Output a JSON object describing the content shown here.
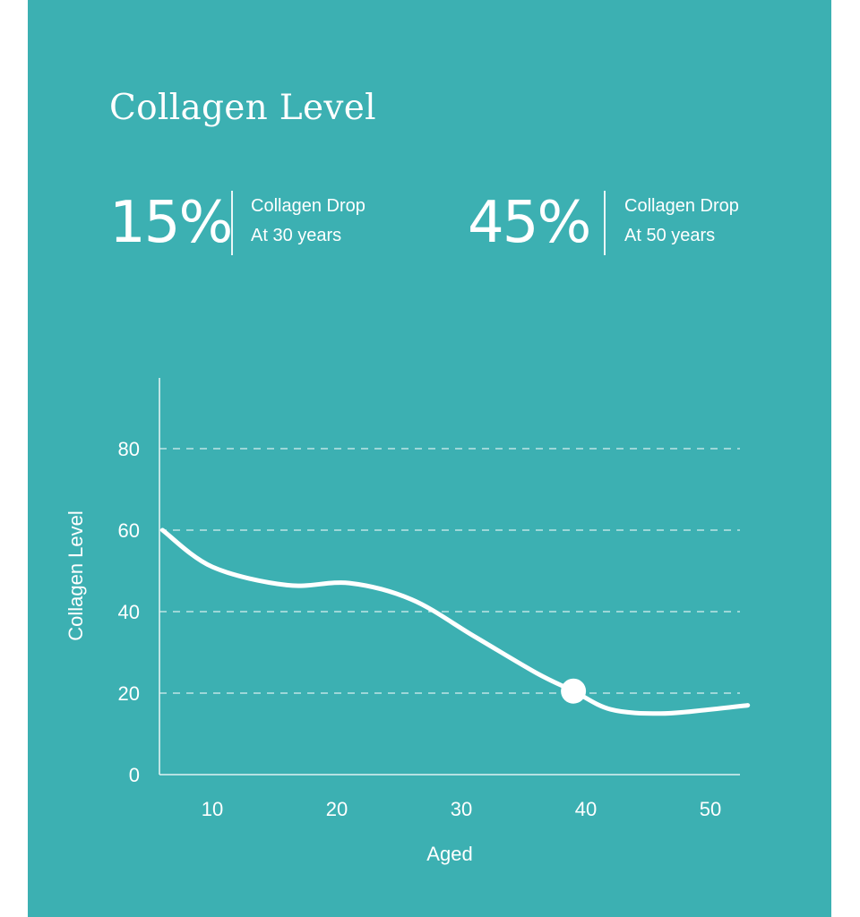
{
  "header": {
    "title": "Collagen Level"
  },
  "stats": [
    {
      "value": "15%",
      "line1": "Collagen Drop",
      "line2": "At 30 years"
    },
    {
      "value": "45%",
      "line1": "Collagen Drop",
      "line2": "At 50 years"
    }
  ],
  "colors": {
    "background": "#3cb0b2",
    "foreground": "#ffffff"
  },
  "chart_data": {
    "type": "line",
    "xlabel": "Aged",
    "ylabel": "Collagen Level",
    "xlim": [
      4,
      53
    ],
    "ylim": [
      0,
      95
    ],
    "xticks": [
      10,
      20,
      30,
      40,
      50
    ],
    "yticks": [
      0,
      20,
      40,
      60,
      80
    ],
    "grid": "horizontal dashed",
    "series": [
      {
        "x": [
          6,
          10,
          16,
          21,
          26,
          31,
          36,
          39,
          42,
          46,
          50,
          53
        ],
        "y": [
          60,
          51,
          46.5,
          47,
          43,
          34,
          25,
          20.5,
          16,
          15,
          16,
          17
        ]
      }
    ],
    "highlight": {
      "x": 39,
      "y": 20.5
    }
  }
}
